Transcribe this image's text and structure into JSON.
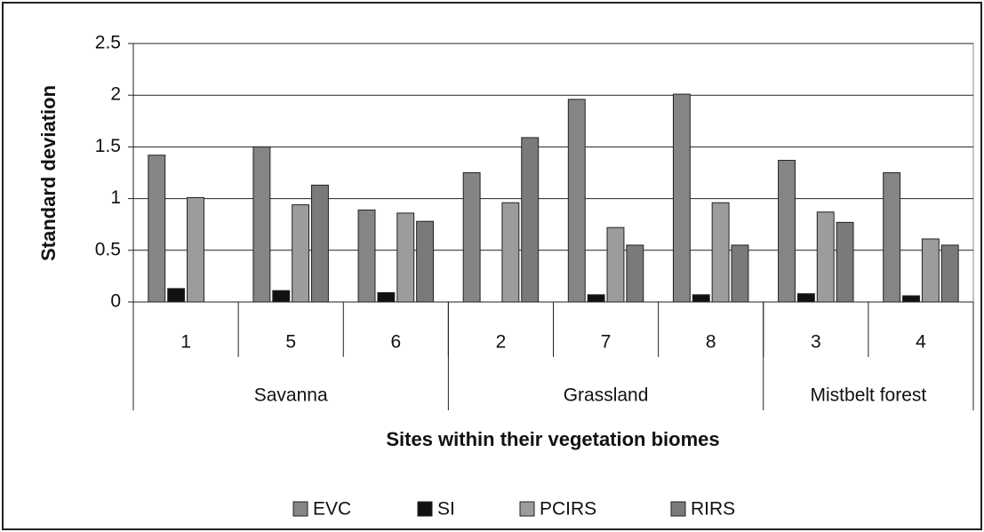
{
  "chart_data": {
    "type": "bar",
    "categories": [
      "1",
      "5",
      "6",
      "2",
      "7",
      "8",
      "3",
      "4"
    ],
    "biomes": [
      "Savanna",
      "Savanna",
      "Savanna",
      "Grassland",
      "Grassland",
      "Grassland",
      "Mistbelt forest",
      "Mistbelt forest"
    ],
    "series": [
      {
        "name": "EVC",
        "color": "#858585",
        "values": [
          1.42,
          1.5,
          0.89,
          1.25,
          1.96,
          2.01,
          1.37,
          1.25
        ]
      },
      {
        "name": "SI",
        "color": "#111111",
        "values": [
          0.13,
          0.11,
          0.09,
          null,
          0.07,
          0.07,
          0.08,
          0.06
        ]
      },
      {
        "name": "PCIRS",
        "color": "#9c9c9c",
        "values": [
          1.01,
          0.94,
          0.86,
          0.96,
          0.72,
          0.96,
          0.87,
          0.61
        ]
      },
      {
        "name": "RIRS",
        "color": "#7a7a7a",
        "values": [
          null,
          1.13,
          0.78,
          1.59,
          0.55,
          0.55,
          0.77,
          0.55
        ]
      }
    ],
    "ylabel": "Standard deviation",
    "xlabel": "Sites within their vegetation biomes",
    "ylim": [
      0,
      2.5
    ],
    "yticks": [
      0,
      0.5,
      1,
      1.5,
      2,
      2.5
    ],
    "grid": true,
    "legend": "bottom"
  }
}
